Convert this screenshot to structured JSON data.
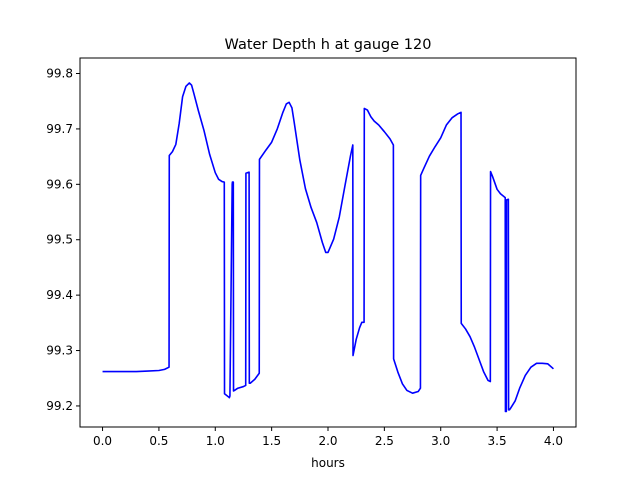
{
  "chart_data": {
    "type": "line",
    "title": "Water Depth h at gauge 120",
    "xlabel": "hours",
    "ylabel": "",
    "xlim": [
      -0.2,
      4.2
    ],
    "ylim": [
      99.162,
      99.828
    ],
    "x_ticks": [
      {
        "value": 0.0,
        "label": "0.0"
      },
      {
        "value": 0.5,
        "label": "0.5"
      },
      {
        "value": 1.0,
        "label": "1.0"
      },
      {
        "value": 1.5,
        "label": "1.5"
      },
      {
        "value": 2.0,
        "label": "2.0"
      },
      {
        "value": 2.5,
        "label": "2.5"
      },
      {
        "value": 3.0,
        "label": "3.0"
      },
      {
        "value": 3.5,
        "label": "3.5"
      },
      {
        "value": 4.0,
        "label": "4.0"
      }
    ],
    "y_ticks": [
      {
        "value": 99.2,
        "label": "99.2"
      },
      {
        "value": 99.3,
        "label": "99.3"
      },
      {
        "value": 99.4,
        "label": "99.4"
      },
      {
        "value": 99.5,
        "label": "99.5"
      },
      {
        "value": 99.6,
        "label": "99.6"
      },
      {
        "value": 99.7,
        "label": "99.7"
      },
      {
        "value": 99.8,
        "label": "99.8"
      }
    ],
    "grid": false,
    "legend": "none",
    "series": [
      {
        "color": "#0000ff",
        "x": [
          0.0,
          0.1,
          0.2,
          0.3,
          0.4,
          0.5,
          0.55,
          0.59,
          0.592,
          0.62,
          0.65,
          0.68,
          0.71,
          0.74,
          0.77,
          0.79,
          0.81,
          0.85,
          0.9,
          0.95,
          1.0,
          1.03,
          1.06,
          1.08,
          1.082,
          1.12,
          1.125,
          1.13,
          1.15,
          1.152,
          1.16,
          1.162,
          1.17,
          1.2,
          1.25,
          1.27,
          1.272,
          1.3,
          1.302,
          1.31,
          1.35,
          1.39,
          1.392,
          1.45,
          1.5,
          1.55,
          1.6,
          1.63,
          1.655,
          1.68,
          1.7,
          1.75,
          1.8,
          1.85,
          1.9,
          1.95,
          1.98,
          2.0,
          2.05,
          2.1,
          2.15,
          2.2,
          2.22,
          2.222,
          2.25,
          2.28,
          2.3,
          2.32,
          2.322,
          2.35,
          2.38,
          2.41,
          2.45,
          2.5,
          2.55,
          2.58,
          2.582,
          2.62,
          2.66,
          2.7,
          2.75,
          2.8,
          2.82,
          2.822,
          2.85,
          2.9,
          2.95,
          3.0,
          3.05,
          3.1,
          3.15,
          3.18,
          3.182,
          3.22,
          3.26,
          3.3,
          3.34,
          3.38,
          3.42,
          3.44,
          3.442,
          3.46,
          3.5,
          3.53,
          3.56,
          3.572,
          3.574,
          3.582,
          3.584,
          3.6,
          3.602,
          3.61,
          3.62,
          3.66,
          3.7,
          3.75,
          3.8,
          3.85,
          3.9,
          3.95,
          4.0
        ],
        "y": [
          99.262,
          99.262,
          99.262,
          99.262,
          99.263,
          99.264,
          99.266,
          99.27,
          99.652,
          99.659,
          99.672,
          99.71,
          99.758,
          99.777,
          99.783,
          99.779,
          99.764,
          99.733,
          99.697,
          99.654,
          99.621,
          99.609,
          99.605,
          99.604,
          99.222,
          99.216,
          99.215,
          99.218,
          99.6,
          99.604,
          99.604,
          99.227,
          99.228,
          99.232,
          99.235,
          99.237,
          99.62,
          99.622,
          99.241,
          99.241,
          99.248,
          99.259,
          99.645,
          99.662,
          99.676,
          99.7,
          99.73,
          99.745,
          99.748,
          99.738,
          99.712,
          99.644,
          99.592,
          99.558,
          99.531,
          99.495,
          99.477,
          99.477,
          99.501,
          99.541,
          99.597,
          99.652,
          99.671,
          99.291,
          99.32,
          99.341,
          99.351,
          99.351,
          99.737,
          99.734,
          99.722,
          99.714,
          99.707,
          99.695,
          99.682,
          99.671,
          99.285,
          99.261,
          99.24,
          99.228,
          99.223,
          99.226,
          99.232,
          99.616,
          99.629,
          99.651,
          99.668,
          99.684,
          99.707,
          99.72,
          99.727,
          99.73,
          99.349,
          99.339,
          99.325,
          99.306,
          99.284,
          99.262,
          99.246,
          99.244,
          99.623,
          99.614,
          99.591,
          99.583,
          99.578,
          99.576,
          99.19,
          99.19,
          99.572,
          99.573,
          99.193,
          99.193,
          99.196,
          99.209,
          99.232,
          99.255,
          99.27,
          99.277,
          99.277,
          99.276,
          99.267
        ]
      }
    ]
  }
}
